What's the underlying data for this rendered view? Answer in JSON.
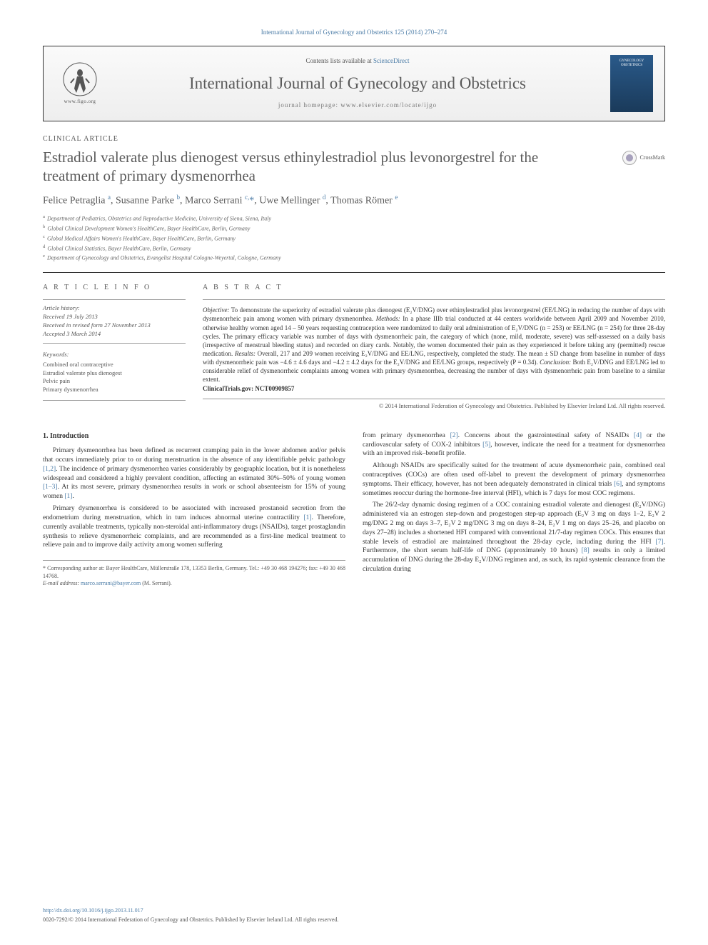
{
  "header": {
    "citation": "International Journal of Gynecology and Obstetrics 125 (2014) 270–274",
    "contents_line": "Contents lists available at ",
    "contents_link": "ScienceDirect",
    "journal_name": "International Journal of Gynecology and Obstetrics",
    "homepage_label": "journal homepage: ",
    "homepage_url": "www.elsevier.com/locate/ijgo",
    "logo_url_text": "www.figo.org",
    "cover_text": "GYNECOLOGY OBSTETRICS"
  },
  "article": {
    "type": "CLINICAL ARTICLE",
    "title": "Estradiol valerate plus dienogest versus ethinylestradiol plus levonorgestrel for the treatment of primary dysmenorrhea",
    "crossmark": "CrossMark",
    "authors_html": "Felice Petraglia <sup>a</sup>, Susanne Parke <sup>b</sup>, Marco Serrani <sup>c,</sup><span class='corr'>*</span>, Uwe Mellinger <sup>d</sup>, Thomas Römer <sup>e</sup>",
    "affiliations": [
      "Department of Pediatrics, Obstetrics and Reproductive Medicine, University of Siena, Siena, Italy",
      "Global Clinical Development Women's HealthCare, Bayer HealthCare, Berlin, Germany",
      "Global Medical Affairs Women's HealthCare, Bayer HealthCare, Berlin, Germany",
      "Global Clinical Statistics, Bayer HealthCare, Berlin, Germany",
      "Department of Gynecology and Obstetrics, Evangelist Hospital Cologne-Weyertal, Cologne, Germany"
    ],
    "aff_labels": [
      "a",
      "b",
      "c",
      "d",
      "e"
    ]
  },
  "info": {
    "heading": "A R T I C L E   I N F O",
    "history_label": "Article history:",
    "history": [
      "Received 19 July 2013",
      "Received in revised form 27 November 2013",
      "Accepted 3 March 2014"
    ],
    "keywords_label": "Keywords:",
    "keywords": [
      "Combined oral contraceptive",
      "Estradiol valerate plus dienogest",
      "Pelvic pain",
      "Primary dysmenorrhea"
    ]
  },
  "abstract": {
    "heading": "A B S T R A C T",
    "text": "Objective: To demonstrate the superiority of estradiol valerate plus dienogest (E₂V/DNG) over ethinylestradiol plus levonorgestrel (EE/LNG) in reducing the number of days with dysmenorrheic pain among women with primary dysmenorrhea. Methods: In a phase IIIb trial conducted at 44 centers worldwide between April 2009 and November 2010, otherwise healthy women aged 14 – 50 years requesting contraception were randomized to daily oral administration of E₂V/DNG (n = 253) or EE/LNG (n = 254) for three 28-day cycles. The primary efficacy variable was number of days with dysmenorrheic pain, the category of which (none, mild, moderate, severe) was self-assessed on a daily basis (irrespective of menstrual bleeding status) and recorded on diary cards. Notably, the women documented their pain as they experienced it before taking any (permitted) rescue medication. Results: Overall, 217 and 209 women receiving E₂V/DNG and EE/LNG, respectively, completed the study. The mean ± SD change from baseline in number of days with dysmenorrheic pain was −4.6 ± 4.6 days and −4.2 ± 4.2 days for the E₂V/DNG and EE/LNG groups, respectively (P = 0.34). Conclusion: Both E₂V/DNG and EE/LNG led to considerable relief of dysmenorrheic complaints among women with primary dysmenorrhea, decreasing the number of days with dysmenorrheic pain from baseline to a similar extent.",
    "trials": "ClinicalTrials.gov: NCT00909857",
    "copyright": "© 2014 International Federation of Gynecology and Obstetrics. Published by Elsevier Ireland Ltd. All rights reserved."
  },
  "body": {
    "section_heading": "1. Introduction",
    "col1": [
      "Primary dysmenorrhea has been defined as recurrent cramping pain in the lower abdomen and/or pelvis that occurs immediately prior to or during menstruation in the absence of any identifiable pelvic pathology [1,2]. The incidence of primary dysmenorrhea varies considerably by geographic location, but it is nonetheless widespread and considered a highly prevalent condition, affecting an estimated 30%–50% of young women [1–3]. At its most severe, primary dysmenorrhea results in work or school absenteeism for 15% of young women [1].",
      "Primary dysmenorrhea is considered to be associated with increased prostanoid secretion from the endometrium during menstruation, which in turn induces abnormal uterine contractility [1]. Therefore, currently available treatments, typically non-steroidal anti-inflammatory drugs (NSAIDs), target prostaglandin synthesis to relieve dysmenorrheic complaints, and are recommended as a first-line medical treatment to relieve pain and to improve daily activity among women suffering"
    ],
    "col2": [
      "from primary dysmenorrhea [2]. Concerns about the gastrointestinal safety of NSAIDs [4] or the cardiovascular safety of COX-2 inhibitors [5], however, indicate the need for a treatment for dysmenorrhea with an improved risk–benefit profile.",
      "Although NSAIDs are specifically suited for the treatment of acute dysmenorrheic pain, combined oral contraceptives (COCs) are often used off-label to prevent the development of primary dysmenorrhea symptoms. Their efficacy, however, has not been adequately demonstrated in clinical trials [6], and symptoms sometimes reoccur during the hormone-free interval (HFI), which is 7 days for most COC regimens.",
      "The 26/2-day dynamic dosing regimen of a COC containing estradiol valerate and dienogest (E₂V/DNG) administered via an estrogen step-down and progestogen step-up approach (E₂V 3 mg on days 1–2, E₂V 2 mg/DNG 2 mg on days 3–7, E₂V 2 mg/DNG 3 mg on days 8–24, E₂V 1 mg on days 25–26, and placebo on days 27–28) includes a shortened HFI compared with conventional 21/7-day regimen COCs. This ensures that stable levels of estradiol are maintained throughout the 28-day cycle, including during the HFI [7]. Furthermore, the short serum half-life of DNG (approximately 10 hours) [8] results in only a limited accumulation of DNG during the 28-day E₂V/DNG regimen and, as such, its rapid systemic clearance from the circulation during"
    ]
  },
  "footnote": {
    "corresponding": "* Corresponding author at: Bayer HealthCare, Müllerstraße 178, 13353 Berlin, Germany. Tel.: +49 30 468 194276; fax: +49 30 468 14768.",
    "email_label": "E-mail address: ",
    "email": "marco.serrani@bayer.com",
    "email_name": " (M. Serrani)."
  },
  "footer": {
    "doi": "http://dx.doi.org/10.1016/j.ijgo.2013.11.017",
    "issn_line": "0020-7292/© 2014 International Federation of Gynecology and Obstetrics. Published by Elsevier Ireland Ltd. All rights reserved."
  },
  "colors": {
    "link": "#4a7ba6",
    "text": "#333333",
    "muted": "#5a5a5a",
    "border": "#333333",
    "rule": "#999999",
    "cover_bg": "#2a5a8a"
  }
}
